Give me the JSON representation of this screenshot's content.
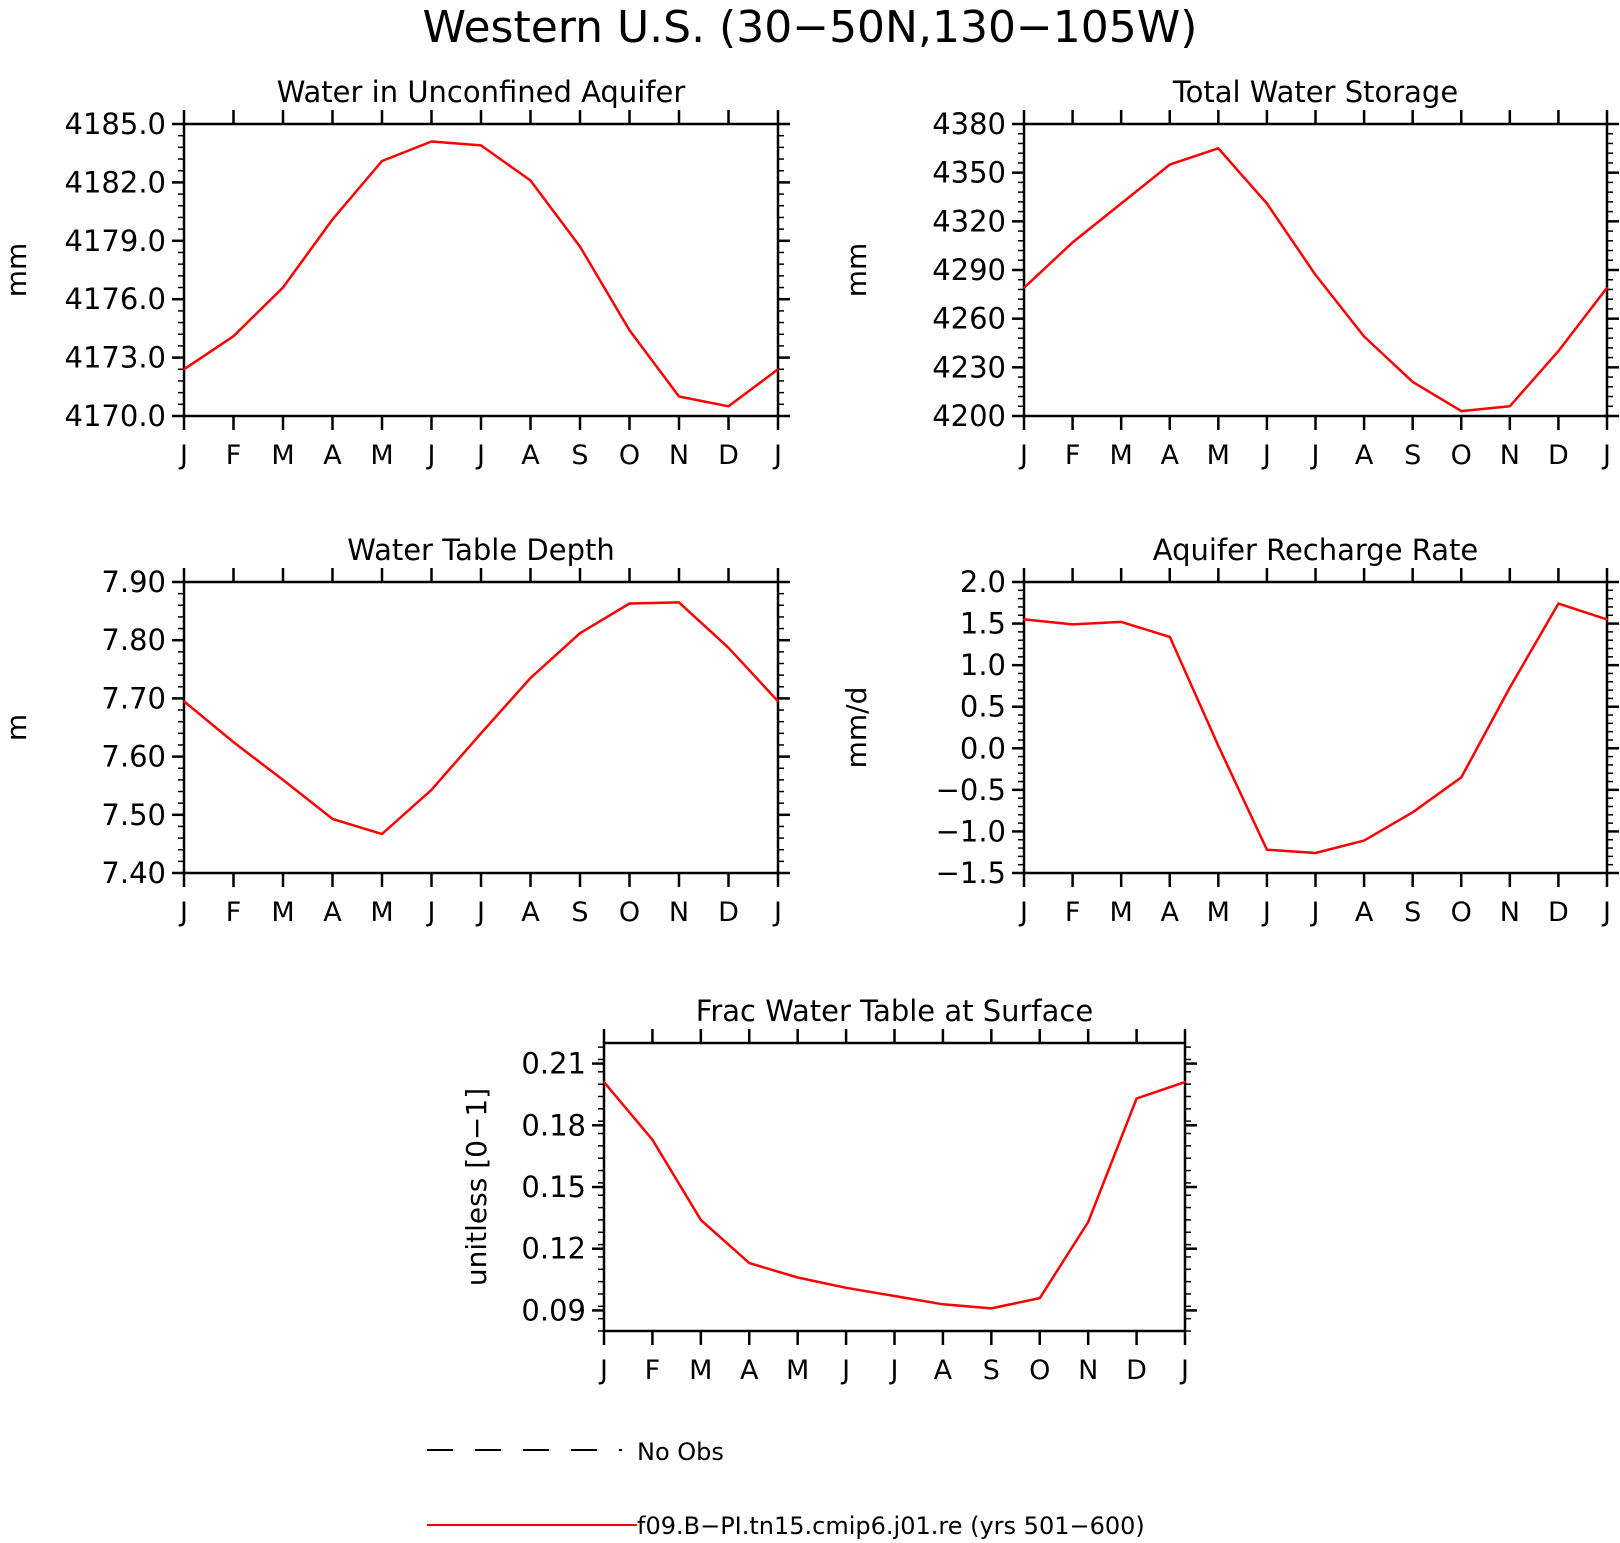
{
  "figure_title": "Western U.S. (30−50N,130−105W)",
  "chart_data": [
    {
      "type": "line",
      "title": "Water in Unconfined Aquifer",
      "ylabel": "mm",
      "xlabel": "",
      "categories": [
        "J",
        "F",
        "M",
        "A",
        "M",
        "J",
        "J",
        "A",
        "S",
        "O",
        "N",
        "D",
        "J"
      ],
      "ylim": [
        4170.0,
        4185.0
      ],
      "yticks": [
        "4170.0",
        "4173.0",
        "4176.0",
        "4179.0",
        "4182.0",
        "4185.0"
      ],
      "series": [
        {
          "name": "f09.B−PI.tn15.cmip6.j01.re (yrs 501−600)",
          "color": "#ff0000",
          "values": [
            4172.4,
            4174.1,
            4176.6,
            4180.1,
            4183.1,
            4184.1,
            4183.9,
            4182.1,
            4178.7,
            4174.4,
            4171.0,
            4170.5,
            4172.4
          ]
        }
      ]
    },
    {
      "type": "line",
      "title": "Total Water Storage",
      "ylabel": "mm",
      "xlabel": "",
      "categories": [
        "J",
        "F",
        "M",
        "A",
        "M",
        "J",
        "J",
        "A",
        "S",
        "O",
        "N",
        "D",
        "J"
      ],
      "ylim": [
        4200,
        4380
      ],
      "yticks": [
        "4200",
        "4230",
        "4260",
        "4290",
        "4320",
        "4350",
        "4380"
      ],
      "series": [
        {
          "name": "f09.B−PI.tn15.cmip6.j01.re (yrs 501−600)",
          "color": "#ff0000",
          "values": [
            4279,
            4307,
            4331,
            4355,
            4365,
            4331,
            4287,
            4249,
            4221,
            4203,
            4206,
            4240,
            4279
          ]
        }
      ]
    },
    {
      "type": "line",
      "title": "Water Table Depth",
      "ylabel": "m",
      "xlabel": "",
      "categories": [
        "J",
        "F",
        "M",
        "A",
        "M",
        "J",
        "J",
        "A",
        "S",
        "O",
        "N",
        "D",
        "J"
      ],
      "ylim": [
        7.4,
        7.9
      ],
      "yticks": [
        "7.40",
        "7.50",
        "7.60",
        "7.70",
        "7.80",
        "7.90"
      ],
      "series": [
        {
          "name": "f09.B−PI.tn15.cmip6.j01.re (yrs 501−600)",
          "color": "#ff0000",
          "values": [
            7.695,
            7.625,
            7.56,
            7.493,
            7.467,
            7.543,
            7.64,
            7.735,
            7.812,
            7.863,
            7.865,
            7.787,
            7.695
          ]
        }
      ]
    },
    {
      "type": "line",
      "title": "Aquifer Recharge Rate",
      "ylabel": "mm/d",
      "xlabel": "",
      "categories": [
        "J",
        "F",
        "M",
        "A",
        "M",
        "J",
        "J",
        "A",
        "S",
        "O",
        "N",
        "D",
        "J"
      ],
      "ylim": [
        -1.5,
        2.0
      ],
      "yticks": [
        "−1.5",
        "−1.0",
        "−0.5",
        "0.0",
        "0.5",
        "1.0",
        "1.5",
        "2.0"
      ],
      "series": [
        {
          "name": "f09.B−PI.tn15.cmip6.j01.re (yrs 501−600)",
          "color": "#ff0000",
          "values": [
            1.55,
            1.49,
            1.52,
            1.34,
            0.03,
            -1.22,
            -1.26,
            -1.11,
            -0.77,
            -0.35,
            0.73,
            1.74,
            1.55
          ]
        }
      ]
    },
    {
      "type": "line",
      "title": "Frac Water Table at Surface",
      "ylabel": "unitless [0−1]",
      "xlabel": "",
      "categories": [
        "J",
        "F",
        "M",
        "A",
        "M",
        "J",
        "J",
        "A",
        "S",
        "O",
        "N",
        "D",
        "J"
      ],
      "ylim": [
        0.08,
        0.22
      ],
      "yticks": [
        "0.09",
        "0.12",
        "0.15",
        "0.18",
        "0.21"
      ],
      "series": [
        {
          "name": "f09.B−PI.tn15.cmip6.j01.re (yrs 501−600)",
          "color": "#ff0000",
          "values": [
            0.201,
            0.173,
            0.134,
            0.113,
            0.106,
            0.101,
            0.097,
            0.093,
            0.091,
            0.096,
            0.133,
            0.193,
            0.201
          ]
        }
      ]
    }
  ],
  "legend": {
    "obs_label": "No Obs",
    "obs_color": "#000000",
    "model_label": "f09.B−PI.tn15.cmip6.j01.re (yrs 501−600)",
    "model_color": "#ff0000"
  }
}
